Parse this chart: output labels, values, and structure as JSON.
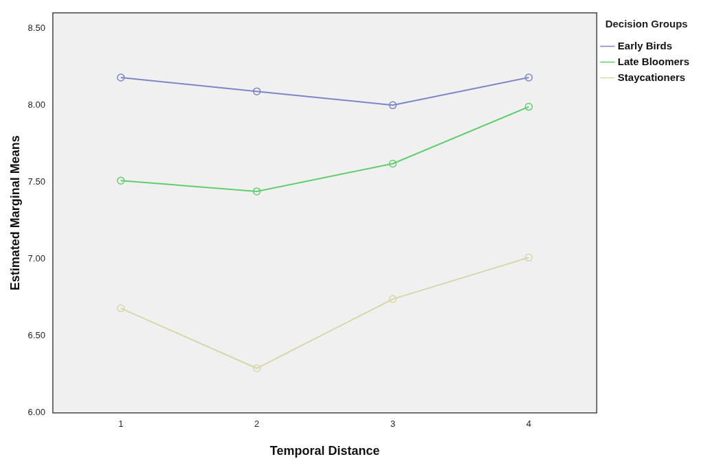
{
  "chart_data": {
    "type": "line",
    "xlabel": "Temporal Distance",
    "ylabel": "Estimated Marginal Means",
    "legend_title": "Decision Groups",
    "categories": [
      "1",
      "2",
      "3",
      "4"
    ],
    "series": [
      {
        "name": "Early Birds",
        "color": "#7b86c6",
        "values": [
          8.18,
          8.09,
          8.0,
          8.18
        ]
      },
      {
        "name": "Late Bloomers",
        "color": "#5fcf6c",
        "values": [
          7.51,
          7.44,
          7.62,
          7.99
        ]
      },
      {
        "name": "Staycationers",
        "color": "#d8d6a6",
        "values": [
          6.68,
          6.29,
          6.74,
          7.01
        ]
      }
    ],
    "ylim": [
      6.0,
      8.6
    ],
    "yticks": [
      {
        "value": 6,
        "label": "6.00"
      },
      {
        "value": 6.5,
        "label": "6.50"
      },
      {
        "value": 7,
        "label": "7.00"
      },
      {
        "value": 7.5,
        "label": "7.50"
      },
      {
        "value": 8,
        "label": "8.00"
      },
      {
        "value": 8.5,
        "label": "8.50"
      }
    ],
    "grid": false,
    "legend": "top right",
    "marker": "circle",
    "line_style": "solid"
  }
}
